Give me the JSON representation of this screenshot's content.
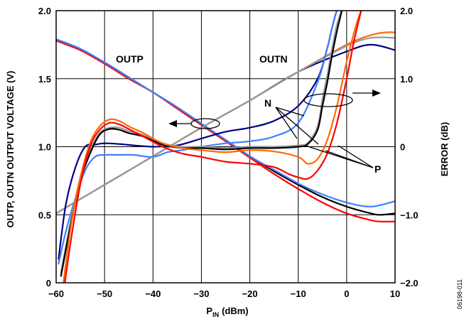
{
  "chart_data": {
    "type": "line",
    "xlabel_main": "P",
    "xlabel_sub": "IN",
    "xlabel_unit": "(dBm)",
    "ylabel_left": "OUTP, OUTN OUTPUT VOLTAGE (V)",
    "ylabel_right": "ERROR (dB)",
    "figure_id": "06198-011",
    "xlim": [
      -60,
      10
    ],
    "ylim_left": [
      0,
      2.0
    ],
    "ylim_right": [
      -2.0,
      2.0
    ],
    "x_ticks": [
      -60,
      -50,
      -40,
      -30,
      -20,
      -10,
      0,
      10
    ],
    "x_tick_labels": [
      "−60",
      "−50",
      "−40",
      "−30",
      "−20",
      "−10",
      "0",
      "10"
    ],
    "y_left_ticks": [
      0,
      0.5,
      1.0,
      1.5,
      2.0
    ],
    "y_left_tick_labels": [
      "0",
      "0.5",
      "1.0",
      "1.5",
      "2.0"
    ],
    "y_right_ticks": [
      -2.0,
      -1.0,
      0,
      1.0,
      2.0
    ],
    "y_right_tick_labels": [
      "−2.0",
      "−1.0",
      "0",
      "1.0",
      "2.0"
    ],
    "grid": true,
    "annotations": {
      "outp": "OUTP",
      "outn": "OUTN",
      "n": "N",
      "p": "P"
    },
    "series": [
      {
        "axis": "left",
        "color": "#000000",
        "x": [
          -60,
          -55,
          -50,
          -45,
          -40,
          -35,
          -30,
          -25,
          -20,
          -15,
          -10,
          -5,
          0,
          5,
          7,
          10
        ],
        "y": [
          1.78,
          1.71,
          1.62,
          1.51,
          1.4,
          1.29,
          1.17,
          1.05,
          0.93,
          0.82,
          0.72,
          0.63,
          0.56,
          0.51,
          0.5,
          0.51
        ]
      },
      {
        "axis": "left",
        "color": "#ff0000",
        "x": [
          -60,
          -55,
          -50,
          -45,
          -40,
          -35,
          -30,
          -25,
          -20,
          -15,
          -10,
          -5,
          0,
          5,
          7,
          10
        ],
        "y": [
          1.78,
          1.71,
          1.61,
          1.5,
          1.4,
          1.28,
          1.16,
          1.04,
          0.92,
          0.8,
          0.69,
          0.59,
          0.51,
          0.46,
          0.45,
          0.45
        ]
      },
      {
        "axis": "left",
        "color": "#3f7fff",
        "x": [
          -60,
          -55,
          -50,
          -45,
          -40,
          -35,
          -30,
          -25,
          -20,
          -15,
          -10,
          -5,
          0,
          5,
          10
        ],
        "y": [
          1.79,
          1.72,
          1.62,
          1.51,
          1.4,
          1.29,
          1.17,
          1.05,
          0.93,
          0.83,
          0.73,
          0.65,
          0.59,
          0.56,
          0.6
        ]
      },
      {
        "axis": "left",
        "color": "#000080",
        "x": [
          -60,
          -50,
          -40,
          -30,
          -20,
          -10,
          0,
          5,
          10
        ],
        "y": [
          0.51,
          0.72,
          0.93,
          1.14,
          1.34,
          1.55,
          1.7,
          1.75,
          1.71
        ]
      },
      {
        "axis": "left",
        "color": "#ff6a00",
        "x": [
          -60,
          -50,
          -40,
          -30,
          -20,
          -10,
          0,
          5,
          8,
          10
        ],
        "y": [
          0.51,
          0.72,
          0.93,
          1.14,
          1.34,
          1.55,
          1.75,
          1.82,
          1.84,
          1.84
        ]
      },
      {
        "axis": "left",
        "color": "#999999",
        "x": [
          -60,
          -50,
          -40,
          -30,
          -20,
          -10,
          0,
          5,
          10
        ],
        "y": [
          0.51,
          0.72,
          0.93,
          1.14,
          1.34,
          1.55,
          1.74,
          1.8,
          1.8
        ]
      },
      {
        "axis": "right",
        "color": "#000080",
        "x": [
          -59.5,
          -58,
          -56,
          -54,
          -52,
          -50,
          -47,
          -44,
          -40,
          -35,
          -30,
          -25,
          -20,
          -15,
          -10,
          -6,
          -4,
          -3,
          -2,
          -1
        ],
        "y": [
          -1.65,
          -0.85,
          -0.3,
          0.0,
          0.03,
          0.05,
          0.04,
          0.02,
          0.0,
          0.02,
          0.12,
          0.22,
          0.28,
          0.38,
          0.6,
          1.0,
          1.45,
          1.75,
          2.0,
          2.0
        ]
      },
      {
        "axis": "right",
        "color": "#3f7fff",
        "x": [
          -59.5,
          -58,
          -56,
          -54,
          -52,
          -50,
          -47,
          -44,
          -40,
          -37,
          -34,
          -30,
          -25,
          -20,
          -15,
          -10,
          -6,
          -4,
          -3,
          -2,
          -1
        ],
        "y": [
          -1.72,
          -1.25,
          -0.75,
          -0.35,
          -0.15,
          -0.12,
          -0.12,
          -0.12,
          -0.15,
          -0.08,
          -0.05,
          0.0,
          0.05,
          0.08,
          0.15,
          0.35,
          0.95,
          1.45,
          1.75,
          2.0,
          2.0
        ]
      },
      {
        "axis": "right",
        "color": "#999999",
        "x": [
          -59,
          -57,
          -55,
          -53,
          -51,
          -49,
          -47,
          -45,
          -42,
          -38,
          -34,
          -30,
          -25,
          -20,
          -15,
          -10,
          -8,
          -6,
          -5,
          -4,
          -3,
          -2,
          -1
        ],
        "y": [
          -1.85,
          -1.1,
          -0.45,
          -0.05,
          0.2,
          0.28,
          0.28,
          0.23,
          0.17,
          0.05,
          0.0,
          0.0,
          -0.02,
          0.0,
          0.0,
          0.02,
          0.06,
          0.3,
          0.7,
          1.05,
          1.45,
          1.8,
          2.0
        ]
      },
      {
        "axis": "right",
        "color": "#000000",
        "x": [
          -59,
          -57,
          -55,
          -53,
          -51,
          -49,
          -47,
          -45,
          -42,
          -38,
          -34,
          -30,
          -25,
          -20,
          -15,
          -10,
          -8,
          -6,
          -5,
          -4,
          -3,
          -2,
          -1
        ],
        "y": [
          -1.9,
          -1.15,
          -0.5,
          -0.1,
          0.18,
          0.26,
          0.25,
          0.2,
          0.15,
          0.03,
          -0.02,
          -0.02,
          -0.04,
          -0.02,
          -0.02,
          0.0,
          0.04,
          0.25,
          0.6,
          0.95,
          1.35,
          1.7,
          2.0
        ]
      },
      {
        "axis": "right",
        "color": "#ff6a00",
        "x": [
          -58.5,
          -57,
          -55,
          -53,
          -51,
          -49,
          -47,
          -45,
          -42,
          -38,
          -34,
          -30,
          -25,
          -20,
          -15,
          -10,
          -8,
          -6,
          -4,
          -2,
          0,
          2,
          3
        ],
        "y": [
          -2.0,
          -1.2,
          -0.45,
          0.05,
          0.3,
          0.4,
          0.38,
          0.3,
          0.2,
          0.05,
          -0.02,
          -0.05,
          -0.08,
          -0.05,
          -0.07,
          -0.15,
          -0.25,
          -0.18,
          0.1,
          0.6,
          1.25,
          1.8,
          2.0
        ]
      },
      {
        "axis": "right",
        "color": "#ff0000",
        "x": [
          -58.2,
          -57,
          -55,
          -53,
          -51,
          -49,
          -47,
          -45,
          -42,
          -38,
          -34,
          -30,
          -25,
          -20,
          -15,
          -12,
          -10,
          -8,
          -6,
          -4,
          -2,
          0,
          1.5,
          3
        ],
        "y": [
          -2.0,
          -1.4,
          -0.55,
          0.0,
          0.25,
          0.35,
          0.33,
          0.26,
          0.15,
          0.0,
          -0.1,
          -0.15,
          -0.22,
          -0.25,
          -0.3,
          -0.4,
          -0.45,
          -0.47,
          -0.35,
          -0.1,
          0.35,
          1.0,
          1.55,
          2.0
        ]
      }
    ]
  }
}
